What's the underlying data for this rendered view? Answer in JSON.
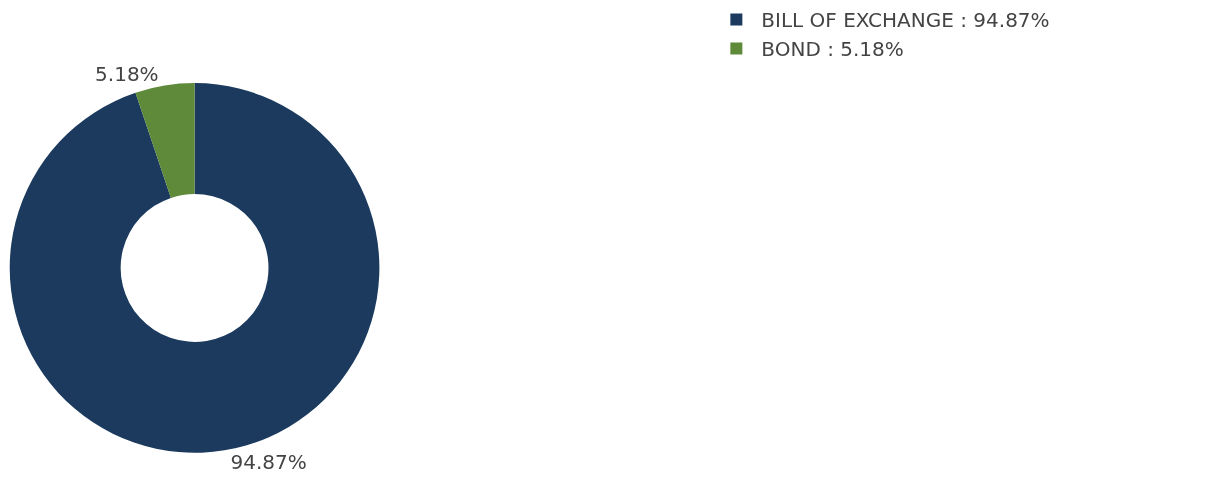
{
  "chart_data": {
    "type": "donut",
    "categories": [
      "BILL OF EXCHANGE",
      "BOND"
    ],
    "values": [
      94.87,
      5.18
    ],
    "colors": [
      "#1b3a5e",
      "#5f8a3a"
    ],
    "value_labels": [
      "94.87%",
      "5.18%"
    ],
    "legend": "top right"
  }
}
